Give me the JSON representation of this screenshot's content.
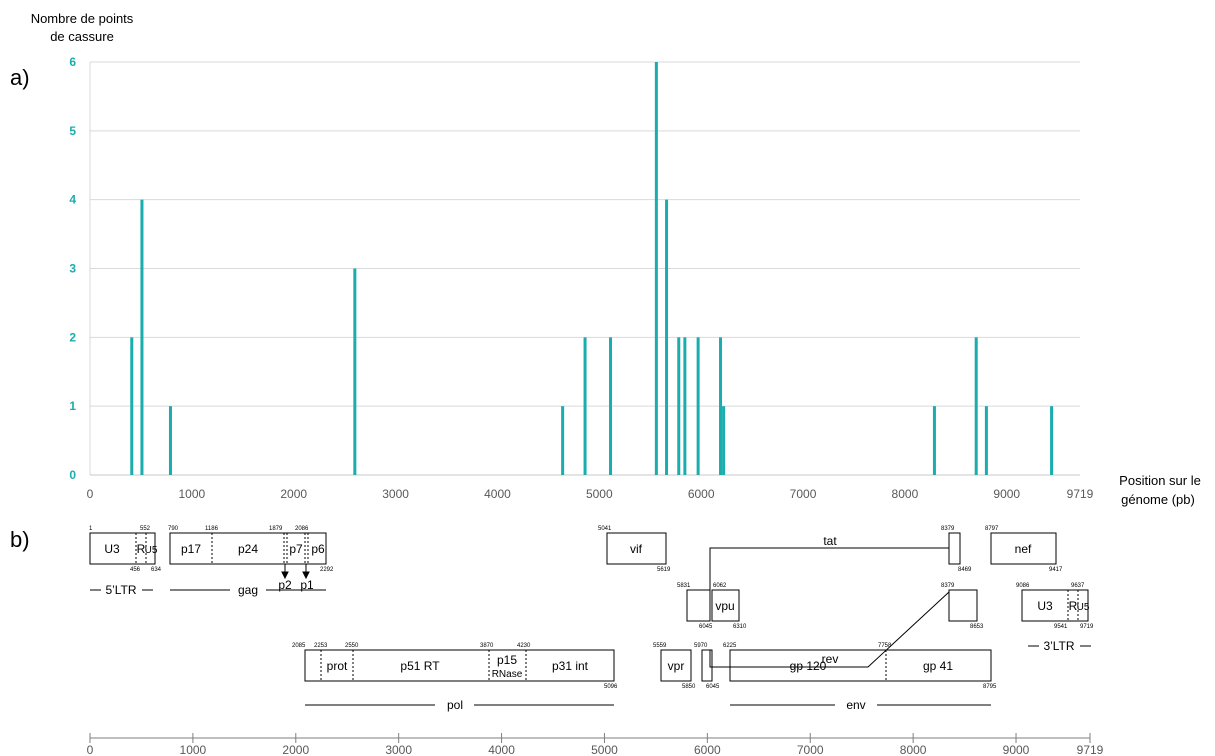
{
  "panel_a": "a)",
  "panel_b": "b)",
  "chart_data": {
    "type": "bar",
    "ylabel_line1": "Nombre de points",
    "ylabel_line2": "de cassure",
    "xlabel_line1": "Position sur le",
    "xlabel_line2": "génome (pb)",
    "ylim": [
      0,
      6
    ],
    "xlim": [
      0,
      9719
    ],
    "y_ticks": [
      "0",
      "1",
      "2",
      "3",
      "4",
      "5",
      "6"
    ],
    "x_ticks": [
      "0",
      "1000",
      "2000",
      "3000",
      "4000",
      "5000",
      "6000",
      "7000",
      "8000",
      "9000",
      "9719"
    ],
    "grid": true,
    "color": "#1aadad",
    "x": [
      410,
      510,
      790,
      2600,
      4640,
      4860,
      5110,
      5560,
      5660,
      5780,
      5840,
      5970,
      6190,
      6220,
      8290,
      8700,
      8800,
      9440
    ],
    "values": [
      2,
      4,
      1,
      3,
      1,
      2,
      2,
      6,
      4,
      2,
      2,
      2,
      2,
      1,
      1,
      2,
      1,
      1
    ]
  },
  "genome_map": {
    "ticks_top": [
      "0",
      "1000",
      "2000",
      "3000",
      "4000",
      "5000",
      "6000",
      "7000",
      "8000",
      "9000",
      "9719"
    ],
    "ticks_bottom": [
      "0",
      "1000",
      "2000",
      "3000",
      "4000",
      "5000",
      "6000",
      "7000",
      "8000",
      "9000",
      "9719"
    ],
    "genes": {
      "u3_5": "U3",
      "r_5": "R",
      "u5_5": "U5",
      "p17": "p17",
      "p24": "p24",
      "p7": "p7",
      "p6": "p6",
      "p2": "p2",
      "p1": "p1",
      "vif": "vif",
      "tat": "tat",
      "nef": "nef",
      "vpu": "vpu",
      "rev": "rev",
      "u3_3": "U3",
      "r_3": "R",
      "u5_3": "U5",
      "prot": "prot",
      "p51": "p51 RT",
      "p15a": "p15",
      "p15b": "RNase",
      "p31": "p31 int",
      "vpr": "vpr",
      "gp120": "gp 120",
      "gp41": "gp 41"
    },
    "regions": {
      "ltr5": "5’LTR",
      "gag": "gag",
      "ltr3": "3’LTR",
      "pol": "pol",
      "env": "env"
    },
    "coords": {
      "c1": "1",
      "c552": "552",
      "c456": "456",
      "c634": "634",
      "c790": "790",
      "c1186": "1186",
      "c1879": "1879",
      "c2086": "2086",
      "c2292": "2292",
      "c5041": "5041",
      "c5619": "5619",
      "c8379a": "8379",
      "c8469": "8469",
      "c8797": "8797",
      "c9417": "9417",
      "c5831": "5831",
      "c6045a": "6045",
      "c6062": "6062",
      "c6310": "6310",
      "c8379b": "8379",
      "c8653": "8653",
      "c9086": "9086",
      "c9637": "9637",
      "c9541": "9541",
      "c9719": "9719",
      "c2085": "2085",
      "c2253": "2253",
      "c2550": "2550",
      "c3870": "3870",
      "c4230": "4230",
      "c5096": "5096",
      "c5559": "5559",
      "c5970": "5970",
      "c5850": "5850",
      "c6045b": "6045",
      "c6225": "6225",
      "c7758": "7758",
      "c8795": "8795"
    }
  }
}
